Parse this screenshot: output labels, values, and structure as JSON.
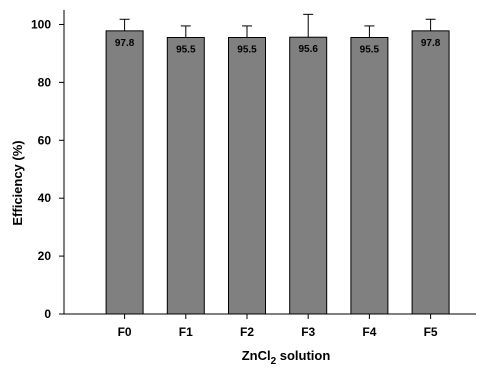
{
  "chart_data": {
    "type": "bar",
    "categories": [
      "F0",
      "F1",
      "F2",
      "F3",
      "F4",
      "F5"
    ],
    "values": [
      97.8,
      95.5,
      95.5,
      95.6,
      95.5,
      97.8
    ],
    "value_labels": [
      "97.8",
      "95.5",
      "95.5",
      "95.6",
      "95.5",
      "97.8"
    ],
    "error_upper": [
      101.8,
      99.5,
      99.5,
      103.5,
      99.5,
      101.8
    ],
    "xlabel_main": "ZnCl",
    "xlabel_sub": "2",
    "xlabel_rest": " solution",
    "ylabel": "Efficiency (%)",
    "ylim": [
      0,
      105
    ],
    "yticks": [
      0,
      20,
      40,
      60,
      80,
      100
    ],
    "ytick_labels": [
      "0",
      "20",
      "40",
      "60",
      "80",
      "100"
    ],
    "grid": false,
    "legend": "none"
  },
  "colors": {
    "bar_fill": "#808080",
    "bar_stroke": "#000000",
    "axis": "#000000",
    "text": "#000000"
  }
}
